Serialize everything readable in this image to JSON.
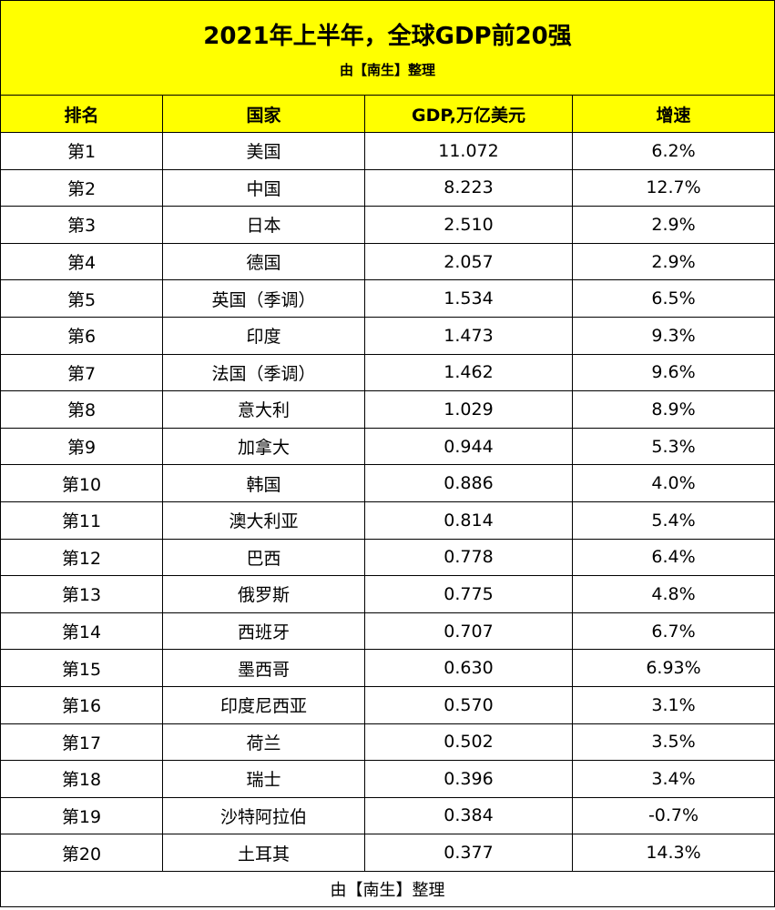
{
  "title": "2021年上半年，全球GDP前20强",
  "subtitle": "由【南生】整理",
  "columns": [
    "排名",
    "国家",
    "GDP,万亿美元",
    "增速"
  ],
  "rows": [
    {
      "rank": "第1",
      "country": "美国",
      "gdp": "11.072",
      "growth": "6.2%"
    },
    {
      "rank": "第2",
      "country": "中国",
      "gdp": "8.223",
      "growth": "12.7%"
    },
    {
      "rank": "第3",
      "country": "日本",
      "gdp": "2.510",
      "growth": "2.9%"
    },
    {
      "rank": "第4",
      "country": "德国",
      "gdp": "2.057",
      "growth": "2.9%"
    },
    {
      "rank": "第5",
      "country": "英国（季调）",
      "gdp": "1.534",
      "growth": "6.5%"
    },
    {
      "rank": "第6",
      "country": "印度",
      "gdp": "1.473",
      "growth": "9.3%"
    },
    {
      "rank": "第7",
      "country": "法国（季调）",
      "gdp": "1.462",
      "growth": "9.6%"
    },
    {
      "rank": "第8",
      "country": "意大利",
      "gdp": "1.029",
      "growth": "8.9%"
    },
    {
      "rank": "第9",
      "country": "加拿大",
      "gdp": "0.944",
      "growth": "5.3%"
    },
    {
      "rank": "第10",
      "country": "韩国",
      "gdp": "0.886",
      "growth": "4.0%"
    },
    {
      "rank": "第11",
      "country": "澳大利亚",
      "gdp": "0.814",
      "growth": "5.4%"
    },
    {
      "rank": "第12",
      "country": "巴西",
      "gdp": "0.778",
      "growth": "6.4%"
    },
    {
      "rank": "第13",
      "country": "俄罗斯",
      "gdp": "0.775",
      "growth": "4.8%"
    },
    {
      "rank": "第14",
      "country": "西班牙",
      "gdp": "0.707",
      "growth": "6.7%"
    },
    {
      "rank": "第15",
      "country": "墨西哥",
      "gdp": "0.630",
      "growth": "6.93%"
    },
    {
      "rank": "第16",
      "country": "印度尼西亚",
      "gdp": "0.570",
      "growth": "3.1%"
    },
    {
      "rank": "第17",
      "country": "荷兰",
      "gdp": "0.502",
      "growth": "3.5%"
    },
    {
      "rank": "第18",
      "country": "瑞士",
      "gdp": "0.396",
      "growth": "3.4%"
    },
    {
      "rank": "第19",
      "country": "沙特阿拉伯",
      "gdp": "0.384",
      "growth": "-0.7%"
    },
    {
      "rank": "第20",
      "country": "土耳其",
      "gdp": "0.377",
      "growth": "14.3%"
    }
  ],
  "footer": "由【南生】整理",
  "colors": {
    "header_bg": "#ffff00",
    "border": "#000000",
    "body_bg": "#ffffff"
  }
}
